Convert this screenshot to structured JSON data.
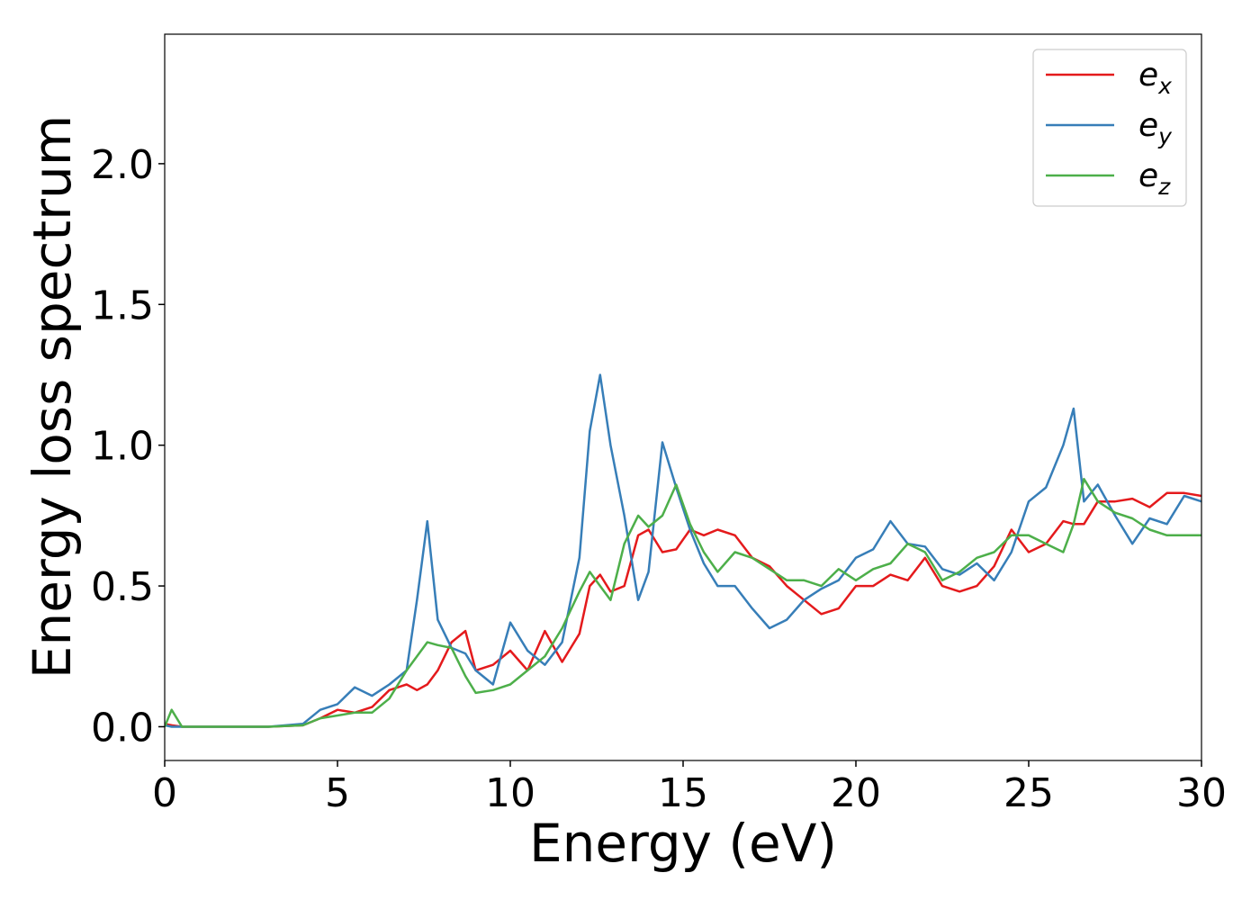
{
  "chart_data": {
    "type": "line",
    "xlabel": "Energy (eV)",
    "ylabel": "Energy loss spectrum",
    "x": [
      0,
      0.2,
      0.5,
      1,
      2,
      3,
      4,
      4.5,
      5,
      5.5,
      6,
      6.5,
      7,
      7.3,
      7.6,
      7.9,
      8.3,
      8.7,
      9,
      9.5,
      10,
      10.5,
      11,
      11.5,
      12,
      12.3,
      12.6,
      12.9,
      13.3,
      13.7,
      14,
      14.4,
      14.8,
      15.2,
      15.6,
      16,
      16.5,
      17,
      17.5,
      18,
      18.5,
      19,
      19.5,
      20,
      20.5,
      21,
      21.5,
      22,
      22.5,
      23,
      23.5,
      24,
      24.5,
      25,
      25.5,
      26,
      26.3,
      26.6,
      27,
      27.5,
      28,
      28.5,
      29,
      29.5,
      30
    ],
    "series": [
      {
        "name": "ex",
        "color": "#e41a1c",
        "values": [
          0.01,
          0.005,
          0,
          0,
          0,
          0,
          0.005,
          0.03,
          0.06,
          0.05,
          0.07,
          0.13,
          0.15,
          0.13,
          0.15,
          0.2,
          0.3,
          0.34,
          0.2,
          0.22,
          0.27,
          0.2,
          0.34,
          0.23,
          0.33,
          0.5,
          0.54,
          0.48,
          0.5,
          0.68,
          0.7,
          0.62,
          0.63,
          0.7,
          0.68,
          0.7,
          0.68,
          0.6,
          0.57,
          0.5,
          0.45,
          0.4,
          0.42,
          0.5,
          0.5,
          0.54,
          0.52,
          0.6,
          0.5,
          0.48,
          0.5,
          0.57,
          0.7,
          0.62,
          0.65,
          0.73,
          0.72,
          0.72,
          0.8,
          0.8,
          0.81,
          0.78,
          0.83,
          0.83,
          0.82
        ]
      },
      {
        "name": "ey",
        "color": "#377eb8",
        "values": [
          0.005,
          0,
          0,
          0,
          0,
          0,
          0.01,
          0.06,
          0.08,
          0.14,
          0.11,
          0.15,
          0.2,
          0.45,
          0.73,
          0.38,
          0.28,
          0.26,
          0.2,
          0.15,
          0.37,
          0.27,
          0.22,
          0.3,
          0.6,
          1.05,
          1.25,
          1.0,
          0.75,
          0.45,
          0.55,
          1.01,
          0.85,
          0.7,
          0.58,
          0.5,
          0.5,
          0.42,
          0.35,
          0.38,
          0.45,
          0.49,
          0.52,
          0.6,
          0.63,
          0.73,
          0.65,
          0.64,
          0.56,
          0.54,
          0.58,
          0.52,
          0.62,
          0.8,
          0.85,
          1.0,
          1.13,
          0.8,
          0.86,
          0.75,
          0.65,
          0.74,
          0.72,
          0.82,
          0.8
        ]
      },
      {
        "name": "ez",
        "color": "#4daf4a",
        "values": [
          0,
          0.06,
          0,
          0,
          0,
          0,
          0.005,
          0.03,
          0.04,
          0.05,
          0.05,
          0.1,
          0.2,
          0.25,
          0.3,
          0.29,
          0.28,
          0.18,
          0.12,
          0.13,
          0.15,
          0.2,
          0.25,
          0.35,
          0.48,
          0.55,
          0.5,
          0.45,
          0.65,
          0.75,
          0.71,
          0.75,
          0.86,
          0.72,
          0.62,
          0.55,
          0.62,
          0.6,
          0.56,
          0.52,
          0.52,
          0.5,
          0.56,
          0.52,
          0.56,
          0.58,
          0.65,
          0.62,
          0.52,
          0.55,
          0.6,
          0.62,
          0.68,
          0.68,
          0.65,
          0.62,
          0.72,
          0.88,
          0.8,
          0.76,
          0.74,
          0.7,
          0.68,
          0.68,
          0.68
        ]
      }
    ],
    "xlim": [
      0,
      30
    ],
    "xticks": [
      0,
      5,
      10,
      15,
      20,
      25,
      30
    ],
    "ylim": [
      -0.12,
      2.46
    ],
    "yticks": [
      {
        "value": 0,
        "label": "0.0"
      },
      0.5,
      {
        "value": 1,
        "label": "1.0"
      },
      1.5,
      {
        "value": 2,
        "label": "2.0"
      }
    ],
    "legend": "upper right",
    "grid": false
  }
}
